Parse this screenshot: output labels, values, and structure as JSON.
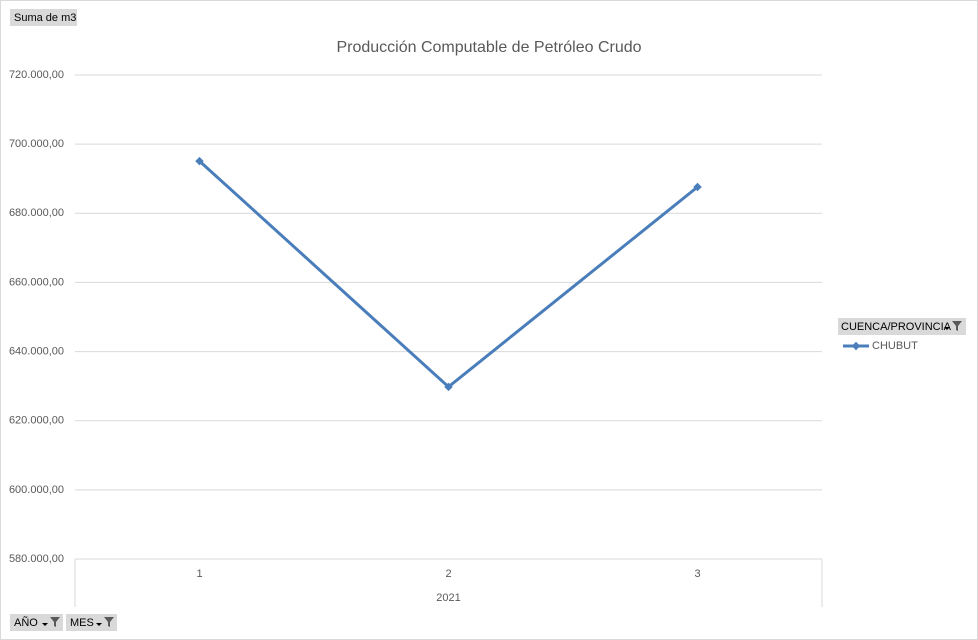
{
  "chart_data": {
    "type": "line",
    "title": "Producción Computable de Petróleo Crudo",
    "value_field": "Suma de m3",
    "filter_fields": [
      "AÑO",
      "MES"
    ],
    "legend_field": "CUENCA/PROVINCIA",
    "categories": [
      "1",
      "2",
      "3"
    ],
    "category_group": "2021",
    "series": [
      {
        "name": "CHUBUT",
        "color": "#4a7ebb",
        "values": [
          695100,
          629800,
          687600
        ]
      }
    ],
    "ylim": [
      580000,
      720000
    ],
    "yticks": [
      {
        "value": 580000,
        "label": "580.000,00"
      },
      {
        "value": 600000,
        "label": "600.000,00"
      },
      {
        "value": 620000,
        "label": "620.000,00"
      },
      {
        "value": 640000,
        "label": "640.000,00"
      },
      {
        "value": 660000,
        "label": "660.000,00"
      },
      {
        "value": 680000,
        "label": "680.000,00"
      },
      {
        "value": 700000,
        "label": "700.000,00"
      },
      {
        "value": 720000,
        "label": "720.000,00"
      }
    ],
    "grid": true
  }
}
